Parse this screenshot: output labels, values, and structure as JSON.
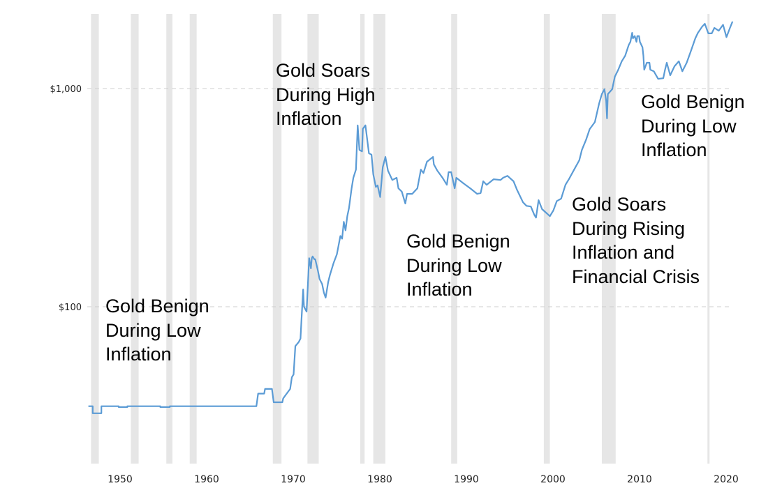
{
  "chart_data": {
    "type": "line",
    "title": "",
    "xlabel": "",
    "ylabel": "",
    "y_scale": "log",
    "xlim": [
      1946,
      2024
    ],
    "ylim": [
      20,
      2300
    ],
    "grid": "horizontal dashed",
    "x_ticks": [
      1950,
      1960,
      1970,
      1980,
      1990,
      2000,
      2010,
      2020
    ],
    "x_tick_labels": [
      "1950",
      "1960",
      "1970",
      "1980",
      "1990",
      "2000",
      "2010",
      "2020"
    ],
    "y_ticks": [
      100,
      1000
    ],
    "y_tick_labels": [
      "$100",
      "$1,000"
    ],
    "line_color": "#5b9bd5",
    "band_color": "#e6e6e6",
    "recession_bands": [
      [
        1948.9,
        1949.8
      ],
      [
        1953.5,
        1954.4
      ],
      [
        1957.6,
        1958.3
      ],
      [
        1960.3,
        1961.1
      ],
      [
        1969.9,
        1970.9
      ],
      [
        1973.9,
        1975.2
      ],
      [
        1980.0,
        1980.5
      ],
      [
        1981.5,
        1982.9
      ],
      [
        1990.5,
        1991.2
      ],
      [
        2001.2,
        2001.9
      ],
      [
        2007.9,
        2009.5
      ],
      [
        2020.1,
        2020.3
      ]
    ],
    "series": [
      {
        "name": "Gold price",
        "points": [
          [
            1948.6,
            35
          ],
          [
            1949.1,
            35
          ],
          [
            1949.1,
            32.5
          ],
          [
            1950.1,
            32.5
          ],
          [
            1950.1,
            35
          ],
          [
            1952.1,
            35
          ],
          [
            1952.1,
            34.7
          ],
          [
            1953.1,
            34.7
          ],
          [
            1953.1,
            35
          ],
          [
            1956.9,
            35
          ],
          [
            1956.9,
            34.7
          ],
          [
            1958.0,
            34.7
          ],
          [
            1958.0,
            35
          ],
          [
            1968.0,
            35
          ],
          [
            1968.2,
            40
          ],
          [
            1968.9,
            40
          ],
          [
            1969.0,
            42
          ],
          [
            1969.8,
            42
          ],
          [
            1970.0,
            36.5
          ],
          [
            1971.0,
            36.5
          ],
          [
            1971.1,
            38
          ],
          [
            1971.5,
            40
          ],
          [
            1971.9,
            42
          ],
          [
            1972.1,
            47.5
          ],
          [
            1972.3,
            49
          ],
          [
            1972.5,
            66
          ],
          [
            1972.9,
            69
          ],
          [
            1973.1,
            71.5
          ],
          [
            1973.2,
            86
          ],
          [
            1973.4,
            120
          ],
          [
            1973.5,
            100
          ],
          [
            1973.8,
            95
          ],
          [
            1974.1,
            167
          ],
          [
            1974.3,
            150
          ],
          [
            1974.4,
            167
          ],
          [
            1974.5,
            170
          ],
          [
            1974.7,
            165
          ],
          [
            1974.8,
            165
          ],
          [
            1975.1,
            147
          ],
          [
            1975.3,
            134
          ],
          [
            1975.6,
            127
          ],
          [
            1975.8,
            116
          ],
          [
            1976.0,
            110
          ],
          [
            1976.3,
            130
          ],
          [
            1976.5,
            140
          ],
          [
            1976.9,
            158
          ],
          [
            1977.3,
            174
          ],
          [
            1977.7,
            211
          ],
          [
            1977.9,
            205
          ],
          [
            1978.1,
            245
          ],
          [
            1978.3,
            224
          ],
          [
            1978.5,
            260
          ],
          [
            1978.7,
            284
          ],
          [
            1979.0,
            349
          ],
          [
            1979.2,
            390
          ],
          [
            1979.5,
            425
          ],
          [
            1979.7,
            678
          ],
          [
            1979.9,
            523
          ],
          [
            1980.2,
            515
          ],
          [
            1980.3,
            654
          ],
          [
            1980.6,
            678
          ],
          [
            1981.0,
            505
          ],
          [
            1981.3,
            498
          ],
          [
            1981.5,
            405
          ],
          [
            1981.8,
            354
          ],
          [
            1982.0,
            360
          ],
          [
            1982.3,
            318
          ],
          [
            1982.6,
            436
          ],
          [
            1982.9,
            486
          ],
          [
            1983.2,
            420
          ],
          [
            1983.7,
            381
          ],
          [
            1984.2,
            390
          ],
          [
            1984.4,
            349
          ],
          [
            1984.8,
            337
          ],
          [
            1985.2,
            297
          ],
          [
            1985.4,
            329
          ],
          [
            1986.0,
            329
          ],
          [
            1986.6,
            349
          ],
          [
            1987.0,
            425
          ],
          [
            1987.3,
            410
          ],
          [
            1987.7,
            462
          ],
          [
            1988.4,
            486
          ],
          [
            1988.5,
            449
          ],
          [
            1988.9,
            420
          ],
          [
            1989.5,
            390
          ],
          [
            1990.0,
            362
          ],
          [
            1990.2,
            414
          ],
          [
            1990.5,
            414
          ],
          [
            1990.9,
            349
          ],
          [
            1991.1,
            390
          ],
          [
            1991.9,
            368
          ],
          [
            1992.7,
            349
          ],
          [
            1993.5,
            329
          ],
          [
            1993.9,
            332
          ],
          [
            1994.2,
            376
          ],
          [
            1994.6,
            362
          ],
          [
            1995.4,
            384
          ],
          [
            1996.2,
            381
          ],
          [
            1996.5,
            390
          ],
          [
            1997.0,
            398
          ],
          [
            1997.7,
            376
          ],
          [
            1998.1,
            344
          ],
          [
            1998.8,
            301
          ],
          [
            1999.2,
            290
          ],
          [
            1999.7,
            288
          ],
          [
            2000.1,
            264
          ],
          [
            2000.3,
            256
          ],
          [
            2000.6,
            308
          ],
          [
            2001.0,
            280
          ],
          [
            2001.9,
            260
          ],
          [
            2002.3,
            276
          ],
          [
            2002.7,
            305
          ],
          [
            2003.2,
            313
          ],
          [
            2003.7,
            362
          ],
          [
            2004.1,
            384
          ],
          [
            2004.7,
            425
          ],
          [
            2005.3,
            469
          ],
          [
            2005.6,
            523
          ],
          [
            2006.1,
            585
          ],
          [
            2006.5,
            652
          ],
          [
            2007.1,
            702
          ],
          [
            2007.6,
            857
          ],
          [
            2007.9,
            943
          ],
          [
            2008.2,
            993
          ],
          [
            2008.4,
            877
          ],
          [
            2008.5,
            730
          ],
          [
            2008.6,
            943
          ],
          [
            2009.1,
            993
          ],
          [
            2009.4,
            1133
          ],
          [
            2009.8,
            1220
          ],
          [
            2010.2,
            1333
          ],
          [
            2010.6,
            1413
          ],
          [
            2011.0,
            1580
          ],
          [
            2011.2,
            1637
          ],
          [
            2011.4,
            1800
          ],
          [
            2011.5,
            1700
          ],
          [
            2011.7,
            1740
          ],
          [
            2011.9,
            1637
          ],
          [
            2012.0,
            1740
          ],
          [
            2012.2,
            1740
          ],
          [
            2012.3,
            1637
          ],
          [
            2012.6,
            1545
          ],
          [
            2012.7,
            1413
          ],
          [
            2012.8,
            1220
          ],
          [
            2013.1,
            1313
          ],
          [
            2013.4,
            1313
          ],
          [
            2013.5,
            1220
          ],
          [
            2013.9,
            1200
          ],
          [
            2014.4,
            1108
          ],
          [
            2015.0,
            1115
          ],
          [
            2015.2,
            1220
          ],
          [
            2015.4,
            1313
          ],
          [
            2015.8,
            1150
          ],
          [
            2016.3,
            1265
          ],
          [
            2016.8,
            1333
          ],
          [
            2017.2,
            1200
          ],
          [
            2017.7,
            1313
          ],
          [
            2018.2,
            1490
          ],
          [
            2018.7,
            1700
          ],
          [
            2019.0,
            1800
          ],
          [
            2019.5,
            1925
          ],
          [
            2019.8,
            1980
          ],
          [
            2020.2,
            1790
          ],
          [
            2020.6,
            1790
          ],
          [
            2020.9,
            1896
          ],
          [
            2021.4,
            1840
          ],
          [
            2021.9,
            1960
          ],
          [
            2022.3,
            1720
          ],
          [
            2022.7,
            1896
          ],
          [
            2023.0,
            2030
          ]
        ]
      }
    ],
    "annotations": [
      {
        "lines": [
          "Gold Benign",
          "During Low",
          "Inflation"
        ]
      },
      {
        "lines": [
          "Gold Soars",
          "During High",
          "Inflation"
        ]
      },
      {
        "lines": [
          "Gold Benign",
          "During Low",
          "Inflation"
        ]
      },
      {
        "lines": [
          "Gold Soars",
          "During Rising",
          "Inflation and",
          "Financial Crisis"
        ]
      },
      {
        "lines": [
          "Gold Benign",
          "During Low",
          "Inflation"
        ]
      }
    ]
  }
}
